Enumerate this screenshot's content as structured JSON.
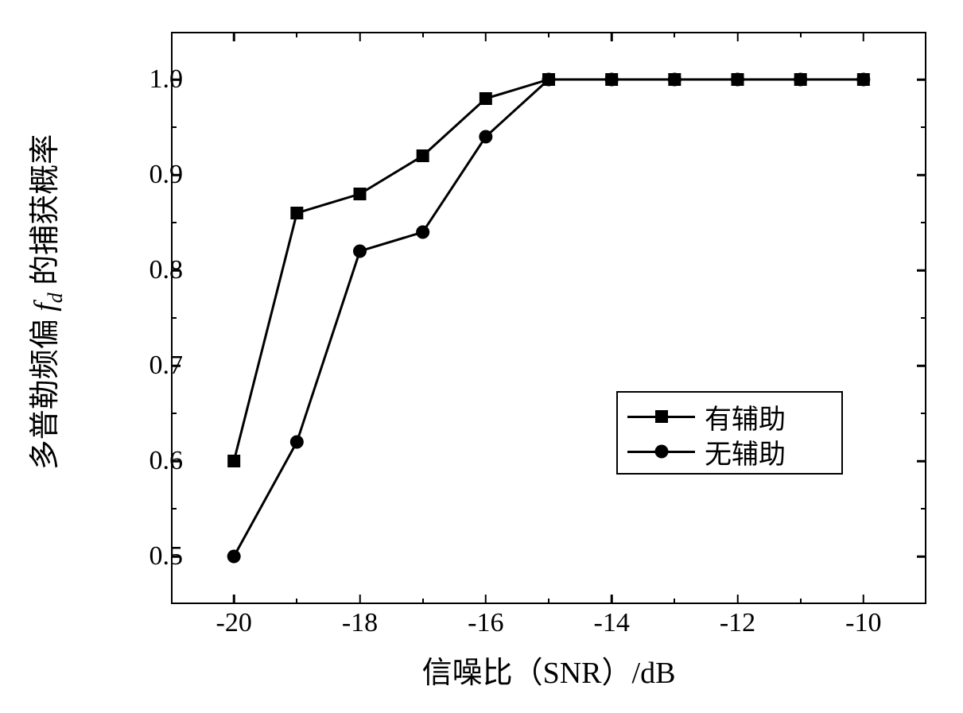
{
  "chart": {
    "type": "line",
    "background_color": "#ffffff",
    "line_color": "#000000",
    "line_width": 3,
    "border_width": 2.5,
    "x_axis": {
      "label_prefix": "信噪比（SNR）/dB",
      "min": -21,
      "max": -9,
      "major_ticks": [
        -20,
        -18,
        -16,
        -14,
        -12,
        -10
      ],
      "minor_ticks": [
        -19,
        -17,
        -15,
        -13,
        -11
      ],
      "tick_labels": [
        "-20",
        "-18",
        "-16",
        "-14",
        "-12",
        "-10"
      ],
      "label_fontsize": 38,
      "tick_fontsize": 34
    },
    "y_axis": {
      "label_parts": {
        "pre": "多普勒频偏 ",
        "var": "f",
        "sub": "d",
        "post": " 的捕获概率"
      },
      "min": 0.45,
      "max": 1.05,
      "major_ticks": [
        0.5,
        0.6,
        0.7,
        0.8,
        0.9,
        1.0
      ],
      "minor_ticks": [
        0.55,
        0.65,
        0.75,
        0.85,
        0.95
      ],
      "tick_labels": [
        "0.5",
        "0.6",
        "0.7",
        "0.8",
        "0.9",
        "1.0"
      ],
      "label_fontsize": 38,
      "tick_fontsize": 34
    },
    "series": [
      {
        "name": "有辅助",
        "marker": "square",
        "marker_size": 16,
        "marker_color": "#000000",
        "x": [
          -20,
          -19,
          -18,
          -17,
          -16,
          -15,
          -14,
          -13,
          -12,
          -11,
          -10
        ],
        "y": [
          0.6,
          0.86,
          0.88,
          0.92,
          0.98,
          1.0,
          1.0,
          1.0,
          1.0,
          1.0,
          1.0
        ]
      },
      {
        "name": "无辅助",
        "marker": "circle",
        "marker_size": 17,
        "marker_color": "#000000",
        "x": [
          -20,
          -19,
          -18,
          -17,
          -16,
          -15,
          -14,
          -13,
          -12,
          -11,
          -10
        ],
        "y": [
          0.5,
          0.62,
          0.82,
          0.84,
          0.94,
          1.0,
          1.0,
          1.0,
          1.0,
          1.0,
          1.0
        ]
      }
    ],
    "legend": {
      "items": [
        "有辅助",
        "无辅助"
      ],
      "fontsize": 34,
      "position": "right-center",
      "border_color": "#000000"
    }
  }
}
